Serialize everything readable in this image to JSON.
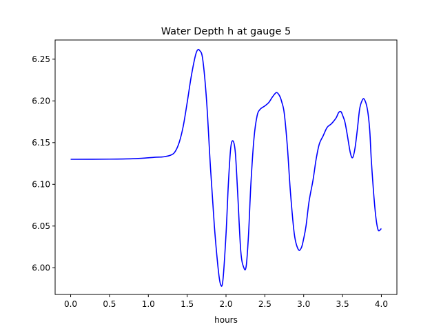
{
  "chart_data": {
    "type": "line",
    "title": "Water Depth h at gauge 5",
    "xlabel": "hours",
    "ylabel": "",
    "xlim": [
      -0.2,
      4.2
    ],
    "ylim": [
      5.968,
      6.273
    ],
    "xticks": [
      0.0,
      0.5,
      1.0,
      1.5,
      2.0,
      2.5,
      3.0,
      3.5,
      4.0
    ],
    "xtick_labels": [
      "0.0",
      "0.5",
      "1.0",
      "1.5",
      "2.0",
      "2.5",
      "3.0",
      "3.5",
      "4.0"
    ],
    "yticks": [
      6.0,
      6.05,
      6.1,
      6.15,
      6.2,
      6.25
    ],
    "ytick_labels": [
      "6.00",
      "6.05",
      "6.10",
      "6.15",
      "6.20",
      "6.25"
    ],
    "grid": false,
    "series": [
      {
        "color": "#0000ff",
        "x": [
          0.0,
          0.5,
          0.8,
          1.0,
          1.1,
          1.2,
          1.3,
          1.35,
          1.4,
          1.45,
          1.5,
          1.55,
          1.6,
          1.63,
          1.66,
          1.7,
          1.75,
          1.8,
          1.85,
          1.9,
          1.93,
          1.96,
          2.0,
          2.03,
          2.06,
          2.09,
          2.12,
          2.15,
          2.19,
          2.23,
          2.26,
          2.29,
          2.32,
          2.36,
          2.4,
          2.44,
          2.5,
          2.55,
          2.6,
          2.65,
          2.69,
          2.72,
          2.75,
          2.79,
          2.83,
          2.88,
          2.93,
          2.97,
          3.0,
          3.03,
          3.07,
          3.12,
          3.16,
          3.2,
          3.25,
          3.3,
          3.35,
          3.38,
          3.42,
          3.45,
          3.48,
          3.5,
          3.53,
          3.56,
          3.6,
          3.63,
          3.66,
          3.69,
          3.72,
          3.75,
          3.78,
          3.82,
          3.85,
          3.87,
          3.9,
          3.93,
          3.96,
          4.0
        ],
        "y": [
          6.13,
          6.1302,
          6.1307,
          6.1318,
          6.1325,
          6.133,
          6.1355,
          6.14,
          6.151,
          6.17,
          6.198,
          6.228,
          6.252,
          6.2605,
          6.2605,
          6.25,
          6.2,
          6.12,
          6.05,
          5.998,
          5.98,
          5.985,
          6.04,
          6.1,
          6.143,
          6.152,
          6.138,
          6.09,
          6.02,
          6.0,
          6.002,
          6.04,
          6.1,
          6.155,
          6.182,
          6.19,
          6.194,
          6.198,
          6.205,
          6.21,
          6.206,
          6.198,
          6.185,
          6.145,
          6.09,
          6.04,
          6.022,
          6.024,
          6.035,
          6.05,
          6.08,
          6.105,
          6.13,
          6.148,
          6.158,
          6.168,
          6.172,
          6.175,
          6.18,
          6.186,
          6.187,
          6.183,
          6.175,
          6.16,
          6.138,
          6.132,
          6.143,
          6.165,
          6.19,
          6.2,
          6.202,
          6.19,
          6.165,
          6.13,
          6.09,
          6.06,
          6.045,
          6.047
        ]
      }
    ]
  }
}
